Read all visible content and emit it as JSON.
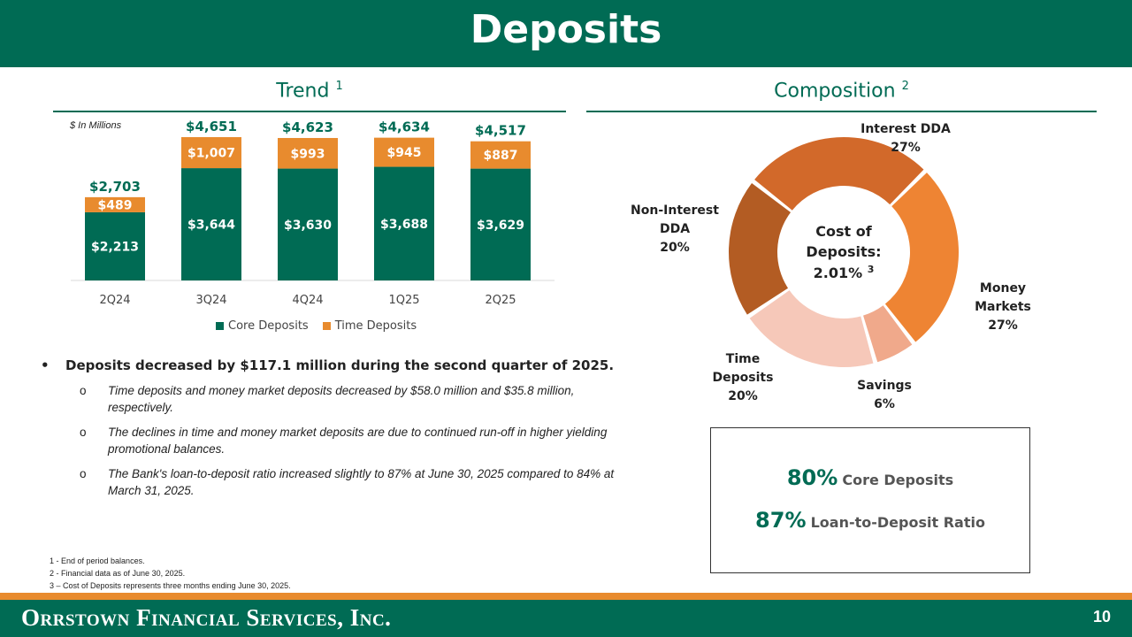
{
  "title": "Deposits",
  "trend": {
    "title": "Trend",
    "sup": "1",
    "units_note": "$ In Millions"
  },
  "composition": {
    "title": "Composition",
    "sup": "2",
    "center_line1": "Cost of",
    "center_line2": "Deposits:",
    "center_value": "2.01%",
    "center_sup": "3"
  },
  "legend": {
    "core": "Core Deposits",
    "time": "Time Deposits"
  },
  "bullets": {
    "main": "Deposits decreased by $117.1 million during the second quarter of 2025.",
    "sub": [
      "Time deposits and money market deposits decreased by $58.0 million and $35.8 million, respectively.",
      "The declines in time and money market deposits are due to continued run-off in higher yielding promotional balances.",
      "The Bank's loan-to-deposit ratio increased slightly to 87% at June 30, 2025 compared to 84% at March 31, 2025."
    ]
  },
  "footnotes": [
    "1 - End of period balances.",
    "2 - Financial data as of June 30, 2025.",
    "3 – Cost of Deposits represents three months ending June 30, 2025."
  ],
  "kpis": [
    {
      "value": "80%",
      "label": "Core Deposits"
    },
    {
      "value": "87%",
      "label": "Loan-to-Deposit Ratio"
    }
  ],
  "footer": {
    "company": "Orrstown Financial Services, Inc.",
    "page": "10"
  },
  "colors": {
    "green": "#006b54",
    "orange": "#e88b2e"
  },
  "chart_data": [
    {
      "type": "bar",
      "stacked": true,
      "title": "Trend",
      "categories": [
        "2Q24",
        "3Q24",
        "4Q24",
        "1Q25",
        "2Q25"
      ],
      "series": [
        {
          "name": "Core Deposits",
          "values": [
            2213,
            3644,
            3630,
            3688,
            3629
          ],
          "labels": [
            "$2,213",
            "$3,644",
            "$3,630",
            "$3,688",
            "$3,629"
          ],
          "color": "#006b54"
        },
        {
          "name": "Time Deposits",
          "values": [
            489,
            1007,
            993,
            945,
            887
          ],
          "labels": [
            "$489",
            "$1,007",
            "$993",
            "$945",
            "$887"
          ],
          "color": "#e88b2e"
        }
      ],
      "totals": [
        "$2,703",
        "$4,651",
        "$4,623",
        "$4,634",
        "$4,517"
      ],
      "ylabel": "$ In Millions",
      "legend": "bottom"
    },
    {
      "type": "pie",
      "donut": true,
      "title": "Composition",
      "slices": [
        {
          "name": "Interest DDA",
          "value": 27,
          "label_lines": [
            "Interest DDA"
          ],
          "pct": "27%",
          "color": "#d2692a"
        },
        {
          "name": "Money Markets",
          "value": 27,
          "label_lines": [
            "Money",
            "Markets"
          ],
          "pct": "27%",
          "color": "#ee8433"
        },
        {
          "name": "Savings",
          "value": 6,
          "label_lines": [
            "Savings"
          ],
          "pct": "6%",
          "color": "#f0a98b"
        },
        {
          "name": "Time Deposits",
          "value": 20,
          "label_lines": [
            "Time",
            "Deposits"
          ],
          "pct": "20%",
          "color": "#f6c8b9"
        },
        {
          "name": "Non-Interest DDA",
          "value": 20,
          "label_lines": [
            "Non-Interest",
            "DDA"
          ],
          "pct": "20%",
          "color": "#b35c23"
        }
      ]
    }
  ]
}
